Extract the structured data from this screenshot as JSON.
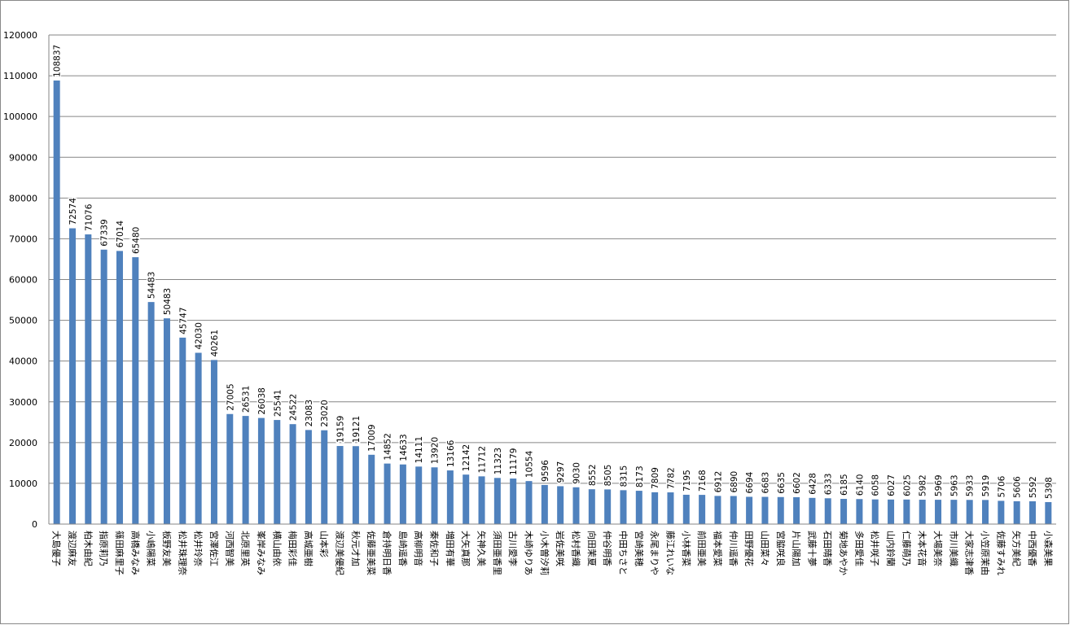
{
  "chart_data": {
    "type": "bar",
    "color": "#4f81bd",
    "grid": true,
    "ylim": [
      0,
      120000
    ],
    "yticks": [
      0,
      10000,
      20000,
      30000,
      40000,
      50000,
      60000,
      70000,
      80000,
      90000,
      100000,
      110000,
      120000
    ],
    "categories": [
      "大島優子",
      "渡辺麻友",
      "柏木由紀",
      "指原莉乃",
      "篠田麻里子",
      "高橋みなみ",
      "小嶋陽菜",
      "板野友美",
      "松井珠理奈",
      "松井玲奈",
      "宮澤佐江",
      "河西智美",
      "北原里英",
      "峯岸みなみ",
      "横山由依",
      "梅田彩佳",
      "高城亜樹",
      "山本彩",
      "渡辺美優紀",
      "秋元才加",
      "佐藤亜美菜",
      "倉持明日香",
      "島崎遥香",
      "高柳明音",
      "秦佐和子",
      "増田有華",
      "大矢真那",
      "矢神久美",
      "須田亜香里",
      "古川愛李",
      "木崎ゆりあ",
      "小木曽汐莉",
      "岩佐美咲",
      "松村香織",
      "向田茉夏",
      "仲谷明香",
      "中田ちさと",
      "宮崎美穂",
      "永尾まりや",
      "藤江れいな",
      "小林香菜",
      "前田亜美",
      "福本愛菜",
      "仲川遥香",
      "田野優花",
      "山田菜々",
      "宮脇咲良",
      "片山陽加",
      "武藤十夢",
      "石田晴香",
      "菊地あやか",
      "多田愛佳",
      "松井咲子",
      "山内鈴蘭",
      "仁藤萌乃",
      "木本花音",
      "大場美奈",
      "市川美織",
      "大家志津香",
      "小笠原茉由",
      "佐藤すみれ",
      "矢方美紀",
      "中西優香",
      "小森美果"
    ],
    "values": [
      108837,
      72574,
      71076,
      67339,
      67014,
      65480,
      54483,
      50483,
      45747,
      42030,
      40261,
      27005,
      26531,
      26038,
      25541,
      24522,
      23083,
      23020,
      19159,
      19121,
      17009,
      14852,
      14633,
      14111,
      13920,
      13166,
      12142,
      11712,
      11323,
      11179,
      10554,
      9596,
      9297,
      9030,
      8552,
      8505,
      8315,
      8173,
      7809,
      7782,
      7195,
      7168,
      6912,
      6890,
      6694,
      6683,
      6635,
      6602,
      6428,
      6333,
      6185,
      6140,
      6058,
      6027,
      6025,
      5982,
      5969,
      5963,
      5933,
      5919,
      5706,
      5606,
      5592,
      5398
    ]
  }
}
